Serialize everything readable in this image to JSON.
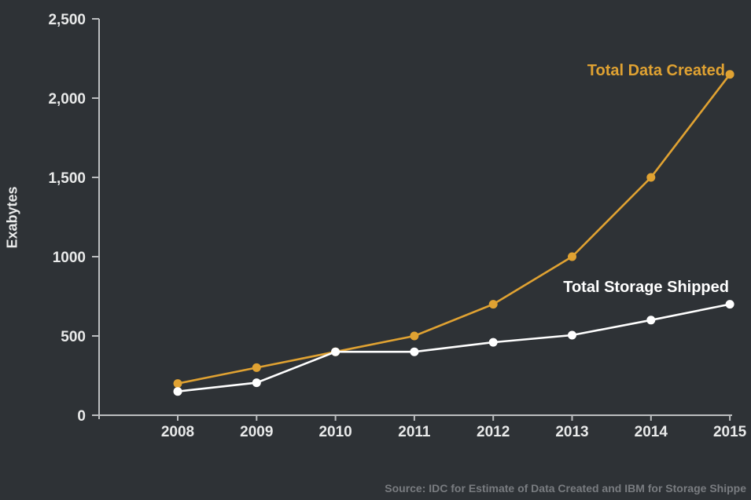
{
  "canvas": {
    "background": "#2e3236"
  },
  "chart_data": {
    "type": "line",
    "title": "",
    "xlabel": "",
    "ylabel": "Exabytes",
    "x": [
      "2008",
      "2009",
      "2010",
      "2011",
      "2012",
      "2013",
      "2014",
      "2015"
    ],
    "series": [
      {
        "name": "Total Data Created",
        "color": "#e0a232",
        "values": [
          200,
          300,
          400,
          500,
          700,
          1000,
          1500,
          2150
        ]
      },
      {
        "name": "Total Storage Shipped",
        "color": "#ffffff",
        "values": [
          150,
          205,
          400,
          400,
          460,
          505,
          600,
          700
        ]
      }
    ],
    "ylim": [
      0,
      2500
    ],
    "ytick_values": [
      0,
      500,
      1000,
      1500,
      2000,
      2500
    ],
    "ytick_labels": [
      "0",
      "500",
      "1000",
      "1,500",
      "2,000",
      "2,500"
    ],
    "grid": false,
    "legend_position": "inline-end-of-line-labels",
    "axis_color": "#bcbec0",
    "tick_label_color": "#e9eaea",
    "y_axis_title_color": "#e9eaea",
    "source_note": "Source: IDC for Estimate of Data Created and IBM for Storage Shippe",
    "source_color": "#797c80"
  }
}
